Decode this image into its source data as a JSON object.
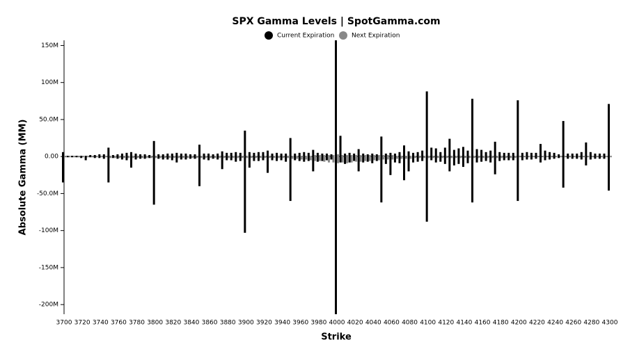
{
  "chart_data": {
    "type": "bar",
    "title": "SPX Gamma Levels | SpotGamma.com",
    "x_label": "Strike",
    "y_label": "Absolute Gamma (MM)",
    "x": [
      3700,
      3705,
      3710,
      3715,
      3720,
      3725,
      3730,
      3735,
      3740,
      3745,
      3750,
      3755,
      3760,
      3765,
      3770,
      3775,
      3780,
      3785,
      3790,
      3795,
      3800,
      3805,
      3810,
      3815,
      3820,
      3825,
      3830,
      3835,
      3840,
      3845,
      3850,
      3855,
      3860,
      3865,
      3870,
      3875,
      3880,
      3885,
      3890,
      3895,
      3900,
      3905,
      3910,
      3915,
      3920,
      3925,
      3930,
      3935,
      3940,
      3945,
      3950,
      3955,
      3960,
      3965,
      3970,
      3975,
      3980,
      3985,
      3990,
      3995,
      4000,
      4005,
      4010,
      4015,
      4020,
      4025,
      4030,
      4035,
      4040,
      4045,
      4050,
      4055,
      4060,
      4065,
      4070,
      4075,
      4080,
      4085,
      4090,
      4095,
      4100,
      4105,
      4110,
      4115,
      4120,
      4125,
      4130,
      4135,
      4140,
      4145,
      4150,
      4155,
      4160,
      4165,
      4170,
      4175,
      4180,
      4185,
      4190,
      4195,
      4200,
      4205,
      4210,
      4215,
      4220,
      4225,
      4230,
      4235,
      4240,
      4245,
      4250,
      4255,
      4260,
      4265,
      4270,
      4275,
      4280,
      4285,
      4290,
      4295,
      4300
    ],
    "series": [
      {
        "name": "Next Expiration",
        "color": "#888888",
        "values": [
          1,
          1,
          1,
          1,
          1,
          1,
          1,
          1,
          1,
          1,
          1,
          1,
          1,
          1,
          1,
          1,
          1,
          1,
          1,
          1,
          1,
          1,
          1,
          1,
          1,
          1,
          1,
          1,
          1,
          1,
          1,
          1,
          1,
          1,
          1,
          1,
          1,
          1,
          1,
          1,
          1,
          1,
          1,
          1,
          1,
          1,
          1,
          1,
          1,
          1,
          1,
          1,
          1,
          1,
          1,
          2,
          2,
          2,
          2,
          2,
          3,
          2,
          2,
          2,
          2,
          2,
          2,
          2,
          2,
          2,
          2,
          2,
          2,
          1,
          1,
          1,
          1,
          1,
          1,
          1,
          1,
          1,
          1,
          1,
          1,
          1,
          1,
          1,
          1,
          1,
          1,
          1,
          1,
          1,
          1,
          1,
          1,
          1,
          1,
          1,
          1,
          1,
          1,
          1,
          1,
          1,
          1,
          1,
          1,
          1,
          1,
          1,
          1,
          1,
          1,
          1,
          1,
          1,
          1,
          1,
          1
        ],
        "put_values": [
          -1,
          -1,
          -1,
          -1,
          -1,
          -1,
          -1,
          -1,
          -1,
          -1,
          -2,
          -2,
          -2,
          -2,
          -2,
          -2,
          -2,
          -2,
          -2,
          -2,
          -2,
          -2,
          -2,
          -2,
          -2,
          -2,
          -2,
          -2,
          -2,
          -2,
          -2,
          -2,
          -2,
          -2,
          -2,
          -2,
          -2,
          -2,
          -2,
          -2,
          -2,
          -2,
          -2,
          -2,
          -2,
          -2,
          -2,
          -2,
          -2,
          -2,
          -3,
          -3,
          -4,
          -4,
          -5,
          -6,
          -6,
          -7,
          -8,
          -8,
          -9,
          -8,
          -9,
          -8,
          -7,
          -7,
          -6,
          -6,
          -5,
          -5,
          -4,
          -4,
          -4,
          -3,
          -3,
          -3,
          -3,
          -2,
          -2,
          -2,
          -2,
          -2,
          -2,
          -2,
          -2,
          -2,
          -2,
          -2,
          -2,
          -2,
          -2,
          -2,
          -2,
          -2,
          -2,
          -2,
          -2,
          -2,
          -2,
          -2,
          -1,
          -1,
          -1,
          -1,
          -1,
          -1,
          -1,
          -1,
          -1,
          -1,
          -1,
          -1,
          -1,
          -1,
          -1,
          -1,
          -1,
          -1,
          -1,
          -1,
          -1
        ]
      },
      {
        "name": "Current Expiration",
        "color": "#000000",
        "values": [
          6,
          1,
          1,
          1,
          1,
          1,
          2,
          2,
          3,
          3,
          12,
          2,
          3,
          4,
          5,
          6,
          4,
          3,
          3,
          2,
          21,
          3,
          3,
          4,
          4,
          5,
          4,
          4,
          3,
          3,
          16,
          4,
          4,
          3,
          4,
          7,
          5,
          5,
          6,
          5,
          35,
          6,
          5,
          6,
          6,
          8,
          4,
          5,
          4,
          4,
          25,
          4,
          5,
          6,
          5,
          9,
          5,
          4,
          4,
          3,
          157,
          28,
          4,
          5,
          4,
          10,
          4,
          3,
          4,
          3,
          27,
          4,
          5,
          4,
          6,
          15,
          7,
          5,
          6,
          8,
          88,
          12,
          11,
          6,
          12,
          24,
          9,
          11,
          13,
          8,
          78,
          10,
          9,
          6,
          8,
          20,
          6,
          5,
          5,
          5,
          76,
          5,
          6,
          5,
          5,
          17,
          8,
          6,
          5,
          3,
          48,
          4,
          4,
          4,
          6,
          19,
          6,
          4,
          4,
          4,
          71
        ],
        "put_values": [
          -35,
          -1,
          -1,
          -1,
          -2,
          -5,
          -1,
          -2,
          -2,
          -3,
          -35,
          -2,
          -3,
          -4,
          -5,
          -15,
          -4,
          -3,
          -3,
          -2,
          -65,
          -3,
          -4,
          -4,
          -5,
          -8,
          -4,
          -4,
          -3,
          -3,
          -40,
          -4,
          -5,
          -3,
          -4,
          -17,
          -5,
          -5,
          -7,
          -6,
          -103,
          -15,
          -6,
          -6,
          -5,
          -22,
          -5,
          -6,
          -5,
          -7,
          -60,
          -5,
          -6,
          -7,
          -6,
          -20,
          -7,
          -6,
          -5,
          -4,
          -213,
          -8,
          -10,
          -8,
          -6,
          -20,
          -8,
          -7,
          -9,
          -6,
          -62,
          -10,
          -25,
          -8,
          -9,
          -32,
          -20,
          -8,
          -7,
          -6,
          -88,
          -5,
          -8,
          -7,
          -10,
          -20,
          -12,
          -10,
          -14,
          -9,
          -62,
          -8,
          -7,
          -6,
          -8,
          -24,
          -6,
          -5,
          -5,
          -5,
          -60,
          -5,
          -4,
          -4,
          -3,
          -8,
          -5,
          -4,
          -3,
          -2,
          -42,
          -3,
          -3,
          -3,
          -4,
          -12,
          -4,
          -3,
          -3,
          -3,
          -46
        ]
      }
    ],
    "xlim": [
      3700,
      4300
    ],
    "xticks": [
      3700,
      3720,
      3740,
      3760,
      3780,
      3800,
      3820,
      3840,
      3860,
      3880,
      3900,
      3920,
      3940,
      3960,
      3980,
      4000,
      4020,
      4040,
      4060,
      4080,
      4100,
      4120,
      4140,
      4160,
      4180,
      4200,
      4220,
      4240,
      4260,
      4280,
      4300
    ],
    "ylim": [
      -213,
      157
    ],
    "yticks": [
      {
        "value": 150,
        "label": "150M"
      },
      {
        "value": 100,
        "label": "100M"
      },
      {
        "value": 50,
        "label": "50.0M"
      },
      {
        "value": 0,
        "label": "0.00"
      },
      {
        "value": -50,
        "label": "-50.0M"
      },
      {
        "value": -100,
        "label": "-100M"
      },
      {
        "value": -150,
        "label": "-150M"
      },
      {
        "value": -200,
        "label": "-200M"
      }
    ]
  }
}
